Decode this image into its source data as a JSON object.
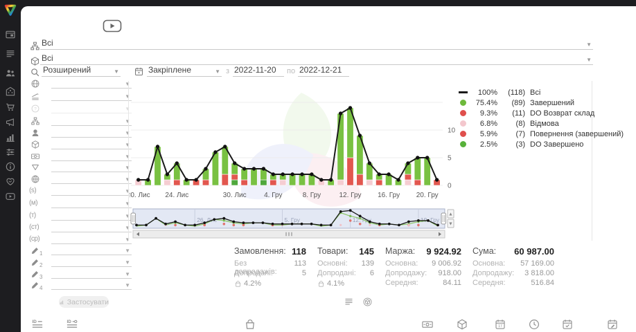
{
  "sidebar": {
    "active_color": "#d9b426",
    "items": [
      {
        "name": "dashboard",
        "icon": "panel",
        "active": false
      },
      {
        "name": "orders",
        "icon": "list",
        "active": false
      },
      {
        "name": "clients",
        "icon": "users",
        "active": false
      },
      {
        "name": "company",
        "icon": "building",
        "active": false
      },
      {
        "name": "shop",
        "icon": "cart",
        "active": false
      },
      {
        "name": "marketing",
        "icon": "megaphone",
        "active": false
      },
      {
        "name": "statistics",
        "icon": "chart-bars",
        "active": true
      },
      {
        "name": "settings",
        "icon": "sliders",
        "active": false
      },
      {
        "name": "info",
        "icon": "info",
        "active": false
      },
      {
        "name": "partners",
        "icon": "handshake",
        "active": false
      },
      {
        "name": "video",
        "icon": "video",
        "active": false
      }
    ]
  },
  "header": {
    "filter1": {
      "icon": "sitemap",
      "value": "Всі"
    },
    "filter2": {
      "icon": "package",
      "value": "Всі"
    },
    "search": {
      "icon": "search",
      "mode": "Розширений"
    },
    "period": {
      "icon": "calendar",
      "mode": "Закріплене",
      "from_label": "з",
      "from": "2022-11-20",
      "to_label": "по",
      "to": "2022-12-21"
    }
  },
  "filter_panel": {
    "apply_label": "Застосувати",
    "rows": [
      {
        "icon": "globe",
        "name": "country-filter"
      },
      {
        "icon": "level",
        "name": "level-filter"
      },
      {
        "icon": "help",
        "name": "status-filter",
        "disabled": true
      },
      {
        "icon": "sitemap",
        "name": "structure-filter"
      },
      {
        "icon": "person",
        "name": "operator-filter"
      },
      {
        "icon": "package",
        "name": "product-filter"
      },
      {
        "icon": "money",
        "name": "payment-filter"
      },
      {
        "icon": "funnel",
        "name": "funnel-filter"
      },
      {
        "icon": "globe-grid",
        "name": "web-filter"
      },
      {
        "text": "(s)",
        "name": "utm-source-filter"
      },
      {
        "text": "(м)",
        "name": "utm-medium-filter"
      },
      {
        "text": "(т)",
        "name": "utm-term-filter"
      },
      {
        "text": "(ст)",
        "name": "utm-content-filter"
      },
      {
        "text": "(ср)",
        "name": "utm-campaign-filter"
      },
      {
        "icon": "pencil",
        "sub": "1",
        "name": "custom-field-1-filter"
      },
      {
        "icon": "pencil",
        "sub": "2",
        "name": "custom-field-2-filter"
      },
      {
        "icon": "pencil",
        "sub": "3",
        "name": "custom-field-3-filter"
      },
      {
        "icon": "pencil",
        "sub": "4",
        "name": "custom-field-4-filter"
      }
    ]
  },
  "chart_data": {
    "type": "bar",
    "stacked": true,
    "overlay": "line",
    "date_from": "2022-11-20",
    "date_to": "2022-12-21",
    "ylim": [
      0,
      15
    ],
    "yticks": [
      0,
      5,
      10
    ],
    "grid": true,
    "x_tick_labels": [
      {
        "i": 0,
        "label": "20. Лис"
      },
      {
        "i": 4,
        "label": "24. Лис"
      },
      {
        "i": 10,
        "label": "30. Лис"
      },
      {
        "i": 14,
        "label": "4. Гру"
      },
      {
        "i": 18,
        "label": "8. Гру"
      },
      {
        "i": 22,
        "label": "12. Гру"
      },
      {
        "i": 26,
        "label": "16. Гру"
      },
      {
        "i": 30,
        "label": "20. Гру"
      }
    ],
    "segment_colors": {
      "green": "#79c142",
      "dark_green": "#4fa83d",
      "red": "#e2574f",
      "pink": "#f5cdd2"
    },
    "total_line": {
      "name": "Всі",
      "color": "#1a1a1a",
      "values": [
        1,
        1,
        7,
        2,
        4,
        1,
        1,
        3,
        6,
        7,
        4,
        3,
        3,
        3,
        2,
        2,
        2,
        2,
        2,
        1,
        1,
        13,
        14,
        9,
        4,
        2,
        2,
        1,
        4,
        5,
        5,
        1
      ]
    },
    "bars": [
      [
        [
          "pink",
          1
        ]
      ],
      [
        [
          "green",
          1
        ]
      ],
      [
        [
          "green",
          7
        ]
      ],
      [
        [
          "pink",
          1
        ],
        [
          "green",
          1
        ]
      ],
      [
        [
          "red",
          1
        ],
        [
          "green",
          3
        ]
      ],
      [
        [
          "green",
          1
        ]
      ],
      [
        [
          "red",
          1
        ]
      ],
      [
        [
          "red",
          1
        ],
        [
          "green",
          2
        ]
      ],
      [
        [
          "green",
          6
        ]
      ],
      [
        [
          "red",
          2
        ],
        [
          "green",
          5
        ]
      ],
      [
        [
          "dark_green",
          1
        ],
        [
          "red",
          1
        ],
        [
          "green",
          2
        ]
      ],
      [
        [
          "red",
          1
        ],
        [
          "green",
          2
        ]
      ],
      [
        [
          "green",
          3
        ]
      ],
      [
        [
          "dark_green",
          1
        ],
        [
          "green",
          2
        ]
      ],
      [
        [
          "red",
          1
        ],
        [
          "green",
          1
        ]
      ],
      [
        [
          "pink",
          1
        ],
        [
          "green",
          1
        ]
      ],
      [
        [
          "green",
          2
        ]
      ],
      [
        [
          "green",
          2
        ]
      ],
      [
        [
          "green",
          2
        ]
      ],
      [
        [
          "pink",
          1
        ]
      ],
      [
        [
          "green",
          1
        ]
      ],
      [
        [
          "pink",
          1
        ],
        [
          "green",
          12
        ]
      ],
      [
        [
          "red",
          5
        ],
        [
          "green",
          9
        ]
      ],
      [
        [
          "red",
          2
        ],
        [
          "green",
          7
        ]
      ],
      [
        [
          "pink",
          1
        ],
        [
          "green",
          3
        ]
      ],
      [
        [
          "red",
          1
        ],
        [
          "green",
          1
        ]
      ],
      [
        [
          "green",
          2
        ]
      ],
      [
        [
          "green",
          1
        ]
      ],
      [
        [
          "pink",
          1
        ],
        [
          "red",
          1
        ],
        [
          "green",
          2
        ]
      ],
      [
        [
          "red",
          1
        ],
        [
          "green",
          4
        ]
      ],
      [
        [
          "green",
          5
        ]
      ],
      [
        [
          "red",
          1
        ]
      ]
    ],
    "navigator": {
      "labels": [
        {
          "i": 6,
          "label": "26. Лис"
        },
        {
          "i": 15,
          "label": "5. Гру"
        },
        {
          "i": 22,
          "label": "12. Гру"
        },
        {
          "i": 29,
          "label": "19. Гру"
        }
      ]
    }
  },
  "legend": {
    "items": [
      {
        "swatch": "line",
        "color": "#1a1a1a",
        "pct": "100%",
        "count": "(118)",
        "label": "Всі"
      },
      {
        "swatch": "dot",
        "color": "#6eb93c",
        "pct": "75.4%",
        "count": "(89)",
        "label": "Завершений"
      },
      {
        "swatch": "dot",
        "color": "#df4f4c",
        "pct": "9.3%",
        "count": "(11)",
        "label": "DO Возврат склад"
      },
      {
        "swatch": "dot",
        "color": "#f3c7cd",
        "pct": "6.8%",
        "count": "(8)",
        "label": "Відмова"
      },
      {
        "swatch": "dot",
        "color": "#df4f4c",
        "pct": "5.9%",
        "count": "(7)",
        "label": "Повернення (завершений)"
      },
      {
        "swatch": "dot",
        "color": "#57b13a",
        "pct": "2.5%",
        "count": "(3)",
        "label": "DO Завершено"
      }
    ]
  },
  "stats": {
    "columns": [
      {
        "title": "Замовлення:",
        "value": "118",
        "pct": "4.2%",
        "rows": [
          {
            "label": "Без допродажів:",
            "value": "113"
          },
          {
            "label": "Допродані:",
            "value": "5"
          }
        ]
      },
      {
        "title": "Товари:",
        "value": "145",
        "pct": "4.1%",
        "rows": [
          {
            "label": "Основні:",
            "value": "139"
          },
          {
            "label": "Допродані:",
            "value": "6"
          }
        ]
      },
      {
        "title": "Маржа:",
        "value": "9 924.92",
        "rows": [
          {
            "label": "Основна:",
            "value": "9 006.92"
          },
          {
            "label": "Допродажу:",
            "value": "918.00"
          },
          {
            "label": "Середня:",
            "value": "84.11"
          }
        ]
      },
      {
        "title": "Сума:",
        "value": "60 987.00",
        "rows": [
          {
            "label": "Основна:",
            "value": "57 169.00"
          },
          {
            "label": "Допродажу:",
            "value": "3 818.00"
          },
          {
            "label": "Середня:",
            "value": "516.84"
          }
        ]
      }
    ]
  },
  "view_toggles": [
    {
      "icon": "list",
      "name": "list-view-toggle"
    },
    {
      "icon": "box-circle",
      "name": "product-view-toggle"
    }
  ],
  "footer_icons": [
    {
      "icon": "id-lines",
      "name": "id-order-column"
    },
    {
      "icon": "id-o-lines",
      "name": "id-external-column"
    },
    {
      "icon": "bag",
      "name": "products-column"
    },
    {
      "icon": "money",
      "name": "payment-column"
    },
    {
      "icon": "package",
      "name": "package-column"
    },
    {
      "icon": "calendar-17",
      "name": "date-column"
    },
    {
      "icon": "clock",
      "name": "time-column"
    },
    {
      "icon": "calendar-check",
      "name": "approve-date-column"
    },
    {
      "icon": "calendar-edit",
      "name": "edit-date-column"
    }
  ]
}
